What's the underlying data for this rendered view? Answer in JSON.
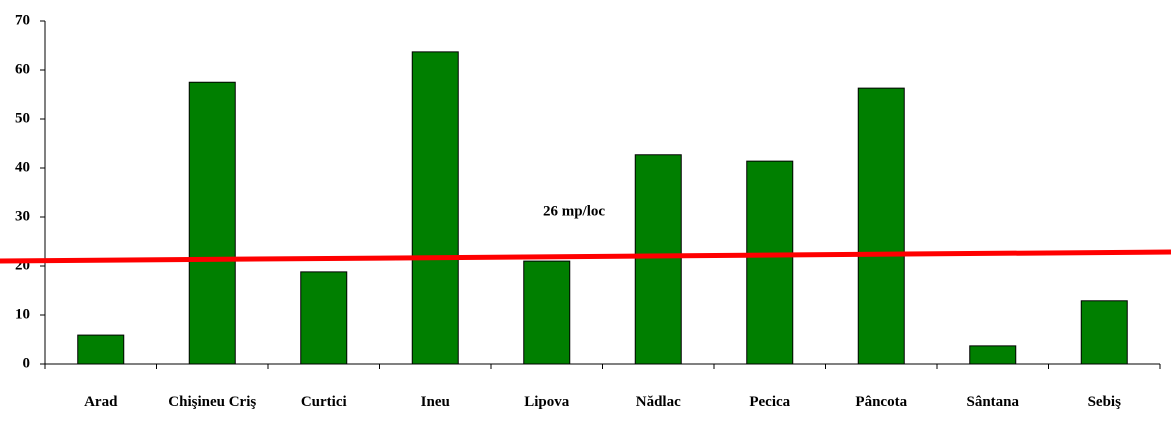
{
  "chart_data": {
    "type": "bar",
    "categories": [
      "Arad",
      "Chişineu Criş",
      "Curtici",
      "Ineu",
      "Lipova",
      "Nădlac",
      "Pecica",
      "Pâncota",
      "Sântana",
      "Sebiş"
    ],
    "values": [
      5.9,
      57.5,
      18.8,
      63.7,
      21,
      42.7,
      41.4,
      56.3,
      3.7,
      12.9
    ],
    "color": "#007f00",
    "ylim": [
      0,
      70
    ],
    "yticks": [
      0,
      10,
      20,
      30,
      40,
      50,
      60,
      70
    ],
    "annotation": "26 mp/loc"
  }
}
